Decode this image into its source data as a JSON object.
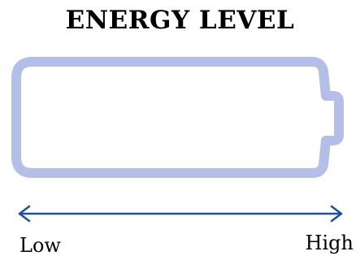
{
  "title": "ENERGY LEVEL",
  "battery": {
    "level": 0,
    "outline_color": "#b3bfe6"
  },
  "scale": {
    "low_label": "Low",
    "high_label": "High",
    "arrow_color": "#1f4f9a"
  }
}
